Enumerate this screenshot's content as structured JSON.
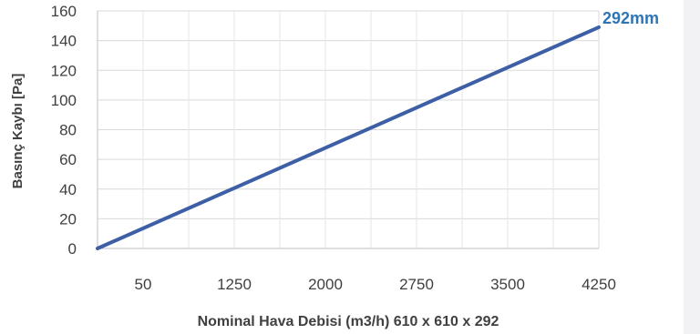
{
  "chart_data": {
    "type": "line",
    "title": "",
    "xlabel": "Nominal Hava Debisi (m3/h) 610 x 610 x 292",
    "ylabel": "Basınç Kaybı [Pa]",
    "x_tick_labels": [
      "50",
      "1250",
      "2000",
      "2750",
      "3500",
      "4250"
    ],
    "y_ticks": [
      0,
      20,
      40,
      60,
      80,
      100,
      120,
      140,
      160
    ],
    "ylim": [
      0,
      160
    ],
    "xlim": [
      0,
      5.5
    ],
    "grid": true,
    "series": [
      {
        "name": "292mm",
        "color": "#3d5fa6",
        "label_color": "#2e75b6",
        "x": [
          0,
          5.5
        ],
        "y": [
          0,
          149
        ]
      }
    ]
  }
}
